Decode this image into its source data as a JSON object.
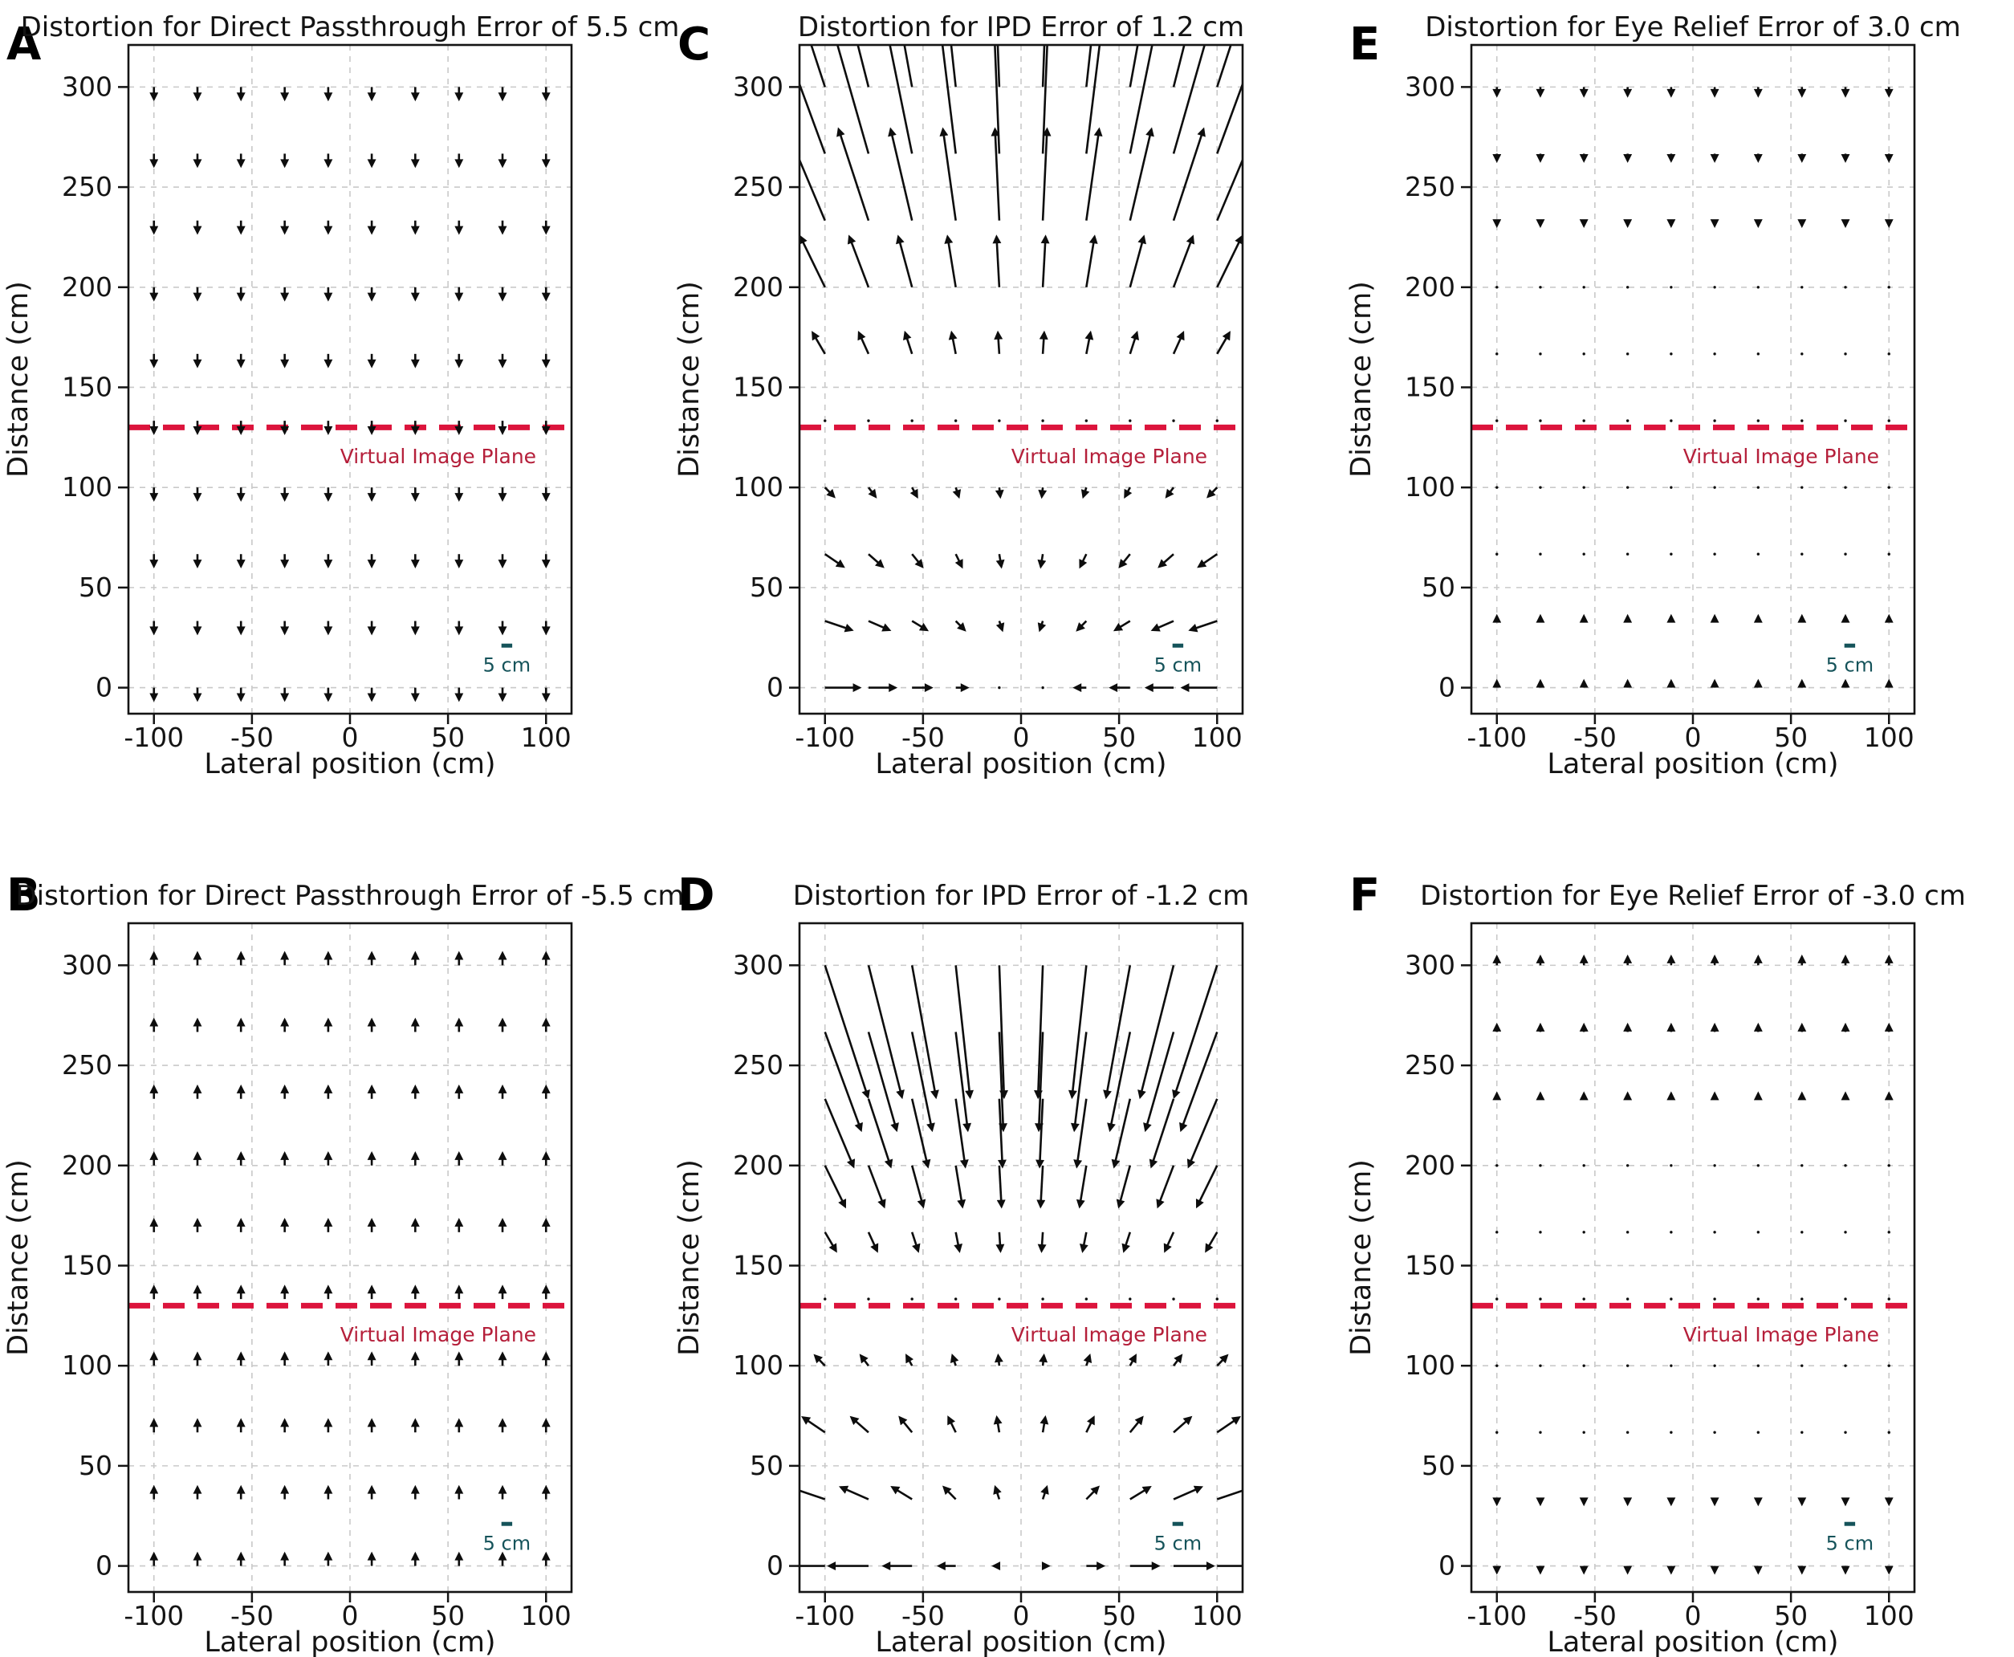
{
  "figure": {
    "background": "#ffffff",
    "axis_color": "#141414",
    "grid_color": "#c9c9c9",
    "arrow_color": "#0d0d0d",
    "vip": {
      "label": "Virtual Image Plane",
      "distance_cm": 130,
      "line_color": "#dc143c",
      "label_color": "#b51f3a"
    },
    "scale_bar": {
      "label": "5 cm",
      "length_cm": 5,
      "bar_data_units": 5.5,
      "color": "#15535a",
      "x_center": 80,
      "bar_distance": 21,
      "label_distance": 8
    },
    "axes": {
      "xlabel": "Lateral position (cm)",
      "ylabel": "Distance (cm)",
      "x_ticks": [
        -100,
        -50,
        0,
        50,
        100
      ],
      "x_tick_labels": [
        "-100",
        "-50",
        "0",
        "50",
        "100"
      ],
      "y_ticks": [
        0,
        50,
        100,
        150,
        200,
        250,
        300
      ],
      "y_tick_labels": [
        "0",
        "50",
        "100",
        "150",
        "200",
        "250",
        "300"
      ],
      "xlim": [
        -113,
        113
      ],
      "ylim": [
        -13,
        321
      ],
      "grid": true
    }
  },
  "chart_data": [
    {
      "type": "quiver",
      "panel_label": "A",
      "title": "Distortion for Direct Passthrough Error of 5.5 cm",
      "x_positions": [
        -100,
        -77.8,
        -55.6,
        -33.3,
        -11.1,
        11.1,
        33.3,
        55.6,
        77.8,
        100
      ],
      "rows": [
        {
          "d": 300,
          "dy_cm": -5.5,
          "dx_per_x": 0
        },
        {
          "d": 266.7,
          "dy_cm": -5.5,
          "dx_per_x": 0
        },
        {
          "d": 233.3,
          "dy_cm": -5.5,
          "dx_per_x": 0
        },
        {
          "d": 200,
          "dy_cm": -5.5,
          "dx_per_x": 0
        },
        {
          "d": 166.7,
          "dy_cm": -5.5,
          "dx_per_x": 0
        },
        {
          "d": 133.3,
          "dy_cm": -5.5,
          "dx_per_x": 0
        },
        {
          "d": 100,
          "dy_cm": -5.5,
          "dx_per_x": 0
        },
        {
          "d": 66.7,
          "dy_cm": -5.5,
          "dx_per_x": 0
        },
        {
          "d": 33.3,
          "dy_cm": -5.5,
          "dx_per_x": 0
        },
        {
          "d": 0,
          "dy_cm": -5.5,
          "dx_per_x": 0
        }
      ]
    },
    {
      "type": "quiver",
      "panel_label": "C",
      "title": "Distortion for IPD Error of 1.2 cm",
      "x_positions": [
        -100,
        -77.8,
        -55.6,
        -33.3,
        -11.1,
        11.1,
        33.3,
        55.6,
        77.8,
        100
      ],
      "rows": [
        {
          "d": 300,
          "dy_cm": 99.5,
          "dx_per_x": 0.332
        },
        {
          "d": 266.7,
          "dy_cm": 67.0,
          "dx_per_x": 0.251
        },
        {
          "d": 233.3,
          "dy_cm": 41.4,
          "dx_per_x": 0.178
        },
        {
          "d": 200,
          "dy_cm": 22.9,
          "dx_per_x": 0.114
        },
        {
          "d": 166.7,
          "dy_cm": 9.6,
          "dx_per_x": 0.057
        },
        {
          "d": 133.3,
          "dy_cm": 0.6,
          "dx_per_x": 0.004
        },
        {
          "d": 100,
          "dy_cm": -4.2,
          "dx_per_x": -0.042
        },
        {
          "d": 66.7,
          "dy_cm": -5.7,
          "dx_per_x": -0.085
        },
        {
          "d": 33.3,
          "dy_cm": -4.1,
          "dx_per_x": -0.124
        },
        {
          "d": 0,
          "dy_cm": 0.0,
          "dx_per_x": -0.16
        }
      ]
    },
    {
      "type": "quiver",
      "panel_label": "E",
      "title": "Distortion for Eye Relief Error of 3.0 cm",
      "x_positions": [
        -100,
        -77.8,
        -55.6,
        -33.3,
        -11.1,
        11.1,
        33.3,
        55.6,
        77.8,
        100
      ],
      "rows": [
        {
          "d": 300,
          "dy_cm": -3.9,
          "dx_per_x": 0
        },
        {
          "d": 266.7,
          "dy_cm": -3.2,
          "dx_per_x": 0
        },
        {
          "d": 233.3,
          "dy_cm": -2.4,
          "dx_per_x": 0
        },
        {
          "d": 200,
          "dy_cm": -1.6,
          "dx_per_x": 0
        },
        {
          "d": 166.7,
          "dy_cm": -0.8,
          "dx_per_x": 0
        },
        {
          "d": 133.3,
          "dy_cm": -0.1,
          "dx_per_x": 0
        },
        {
          "d": 100,
          "dy_cm": 0.7,
          "dx_per_x": 0
        },
        {
          "d": 66.7,
          "dy_cm": 1.5,
          "dx_per_x": 0
        },
        {
          "d": 33.3,
          "dy_cm": 2.2,
          "dx_per_x": 0
        },
        {
          "d": 0,
          "dy_cm": 3.0,
          "dx_per_x": 0
        }
      ]
    },
    {
      "type": "quiver",
      "panel_label": "B",
      "title": "Distortion for Direct Passthrough Error of -5.5 cm",
      "x_positions": [
        -100,
        -77.8,
        -55.6,
        -33.3,
        -11.1,
        11.1,
        33.3,
        55.6,
        77.8,
        100
      ],
      "rows": [
        {
          "d": 300,
          "dy_cm": 5.5,
          "dx_per_x": 0
        },
        {
          "d": 266.7,
          "dy_cm": 5.5,
          "dx_per_x": 0
        },
        {
          "d": 233.3,
          "dy_cm": 5.5,
          "dx_per_x": 0
        },
        {
          "d": 200,
          "dy_cm": 5.5,
          "dx_per_x": 0
        },
        {
          "d": 166.7,
          "dy_cm": 5.5,
          "dx_per_x": 0
        },
        {
          "d": 133.3,
          "dy_cm": 5.5,
          "dx_per_x": 0
        },
        {
          "d": 100,
          "dy_cm": 5.5,
          "dx_per_x": 0
        },
        {
          "d": 66.7,
          "dy_cm": 5.5,
          "dx_per_x": 0
        },
        {
          "d": 33.3,
          "dy_cm": 5.5,
          "dx_per_x": 0
        },
        {
          "d": 0,
          "dy_cm": 5.5,
          "dx_per_x": 0
        }
      ]
    },
    {
      "type": "quiver",
      "panel_label": "D",
      "title": "Distortion for IPD Error of -1.2 cm",
      "x_positions": [
        -100,
        -77.8,
        -55.6,
        -33.3,
        -11.1,
        11.1,
        33.3,
        55.6,
        77.8,
        100
      ],
      "rows": [
        {
          "d": 300,
          "dy_cm": -59.8,
          "dx_per_x": -0.199
        },
        {
          "d": 266.7,
          "dy_cm": -44.5,
          "dx_per_x": -0.167
        },
        {
          "d": 233.3,
          "dy_cm": -30.7,
          "dx_per_x": -0.132
        },
        {
          "d": 200,
          "dy_cm": -18.6,
          "dx_per_x": -0.093
        },
        {
          "d": 166.7,
          "dy_cm": -8.5,
          "dx_per_x": -0.051
        },
        {
          "d": 133.3,
          "dy_cm": -0.6,
          "dx_per_x": -0.004
        },
        {
          "d": 100,
          "dy_cm": 4.6,
          "dx_per_x": 0.046
        },
        {
          "d": 66.7,
          "dy_cm": 6.8,
          "dx_per_x": 0.102
        },
        {
          "d": 33.3,
          "dy_cm": 5.5,
          "dx_per_x": 0.165
        },
        {
          "d": 0,
          "dy_cm": 0.0,
          "dx_per_x": 0.235
        }
      ]
    },
    {
      "type": "quiver",
      "panel_label": "F",
      "title": "Distortion for Eye Relief Error of -3.0 cm",
      "x_positions": [
        -100,
        -77.8,
        -55.6,
        -33.3,
        -11.1,
        11.1,
        33.3,
        55.6,
        77.8,
        100
      ],
      "rows": [
        {
          "d": 300,
          "dy_cm": 3.9,
          "dx_per_x": 0
        },
        {
          "d": 266.7,
          "dy_cm": 3.2,
          "dx_per_x": 0
        },
        {
          "d": 233.3,
          "dy_cm": 2.4,
          "dx_per_x": 0
        },
        {
          "d": 200,
          "dy_cm": 1.6,
          "dx_per_x": 0
        },
        {
          "d": 166.7,
          "dy_cm": 0.8,
          "dx_per_x": 0
        },
        {
          "d": 133.3,
          "dy_cm": 0.1,
          "dx_per_x": 0
        },
        {
          "d": 100,
          "dy_cm": -0.7,
          "dx_per_x": 0
        },
        {
          "d": 66.7,
          "dy_cm": -1.5,
          "dx_per_x": 0
        },
        {
          "d": 33.3,
          "dy_cm": -2.2,
          "dx_per_x": 0
        },
        {
          "d": 0,
          "dy_cm": -3.0,
          "dx_per_x": 0
        }
      ]
    }
  ]
}
